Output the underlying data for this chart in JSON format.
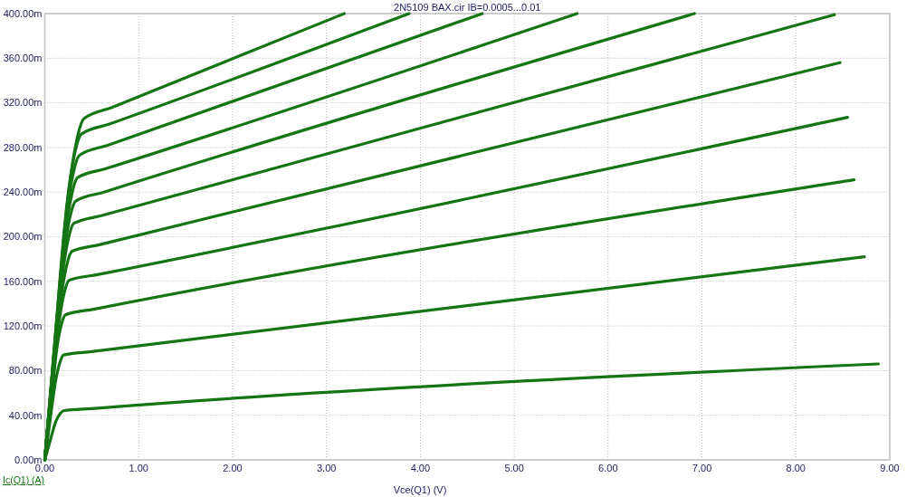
{
  "chart_data": {
    "type": "line",
    "title": "2N5109 BAX.cir IB=0.0005...0.01",
    "xlabel": "Vce(Q1) (V)",
    "ylabel": "Ic(Q1) (A)",
    "xlim": [
      0,
      9
    ],
    "ylim": [
      0,
      400
    ],
    "xticks": [
      {
        "value": 0,
        "label": "0.00"
      },
      {
        "value": 1,
        "label": "1.00"
      },
      {
        "value": 2,
        "label": "2.00"
      },
      {
        "value": 3,
        "label": "3.00"
      },
      {
        "value": 4,
        "label": "4.00"
      },
      {
        "value": 5,
        "label": "5.00"
      },
      {
        "value": 6,
        "label": "6.00"
      },
      {
        "value": 7,
        "label": "7.00"
      },
      {
        "value": 8,
        "label": "8.00"
      },
      {
        "value": 9,
        "label": "9.00"
      }
    ],
    "yticks": [
      {
        "value": 0,
        "label": "0.00m"
      },
      {
        "value": 40,
        "label": "40.00m"
      },
      {
        "value": 80,
        "label": "80.00m"
      },
      {
        "value": 120,
        "label": "120.00m"
      },
      {
        "value": 160,
        "label": "160.00m"
      },
      {
        "value": 200,
        "label": "200.00m"
      },
      {
        "value": 240,
        "label": "240.00m"
      },
      {
        "value": 280,
        "label": "280.00m"
      },
      {
        "value": 320,
        "label": "320.00m"
      },
      {
        "value": 360,
        "label": "360.00m"
      },
      {
        "value": 400,
        "label": "400.00m"
      }
    ],
    "grid": true,
    "series": [
      {
        "color": "#157515",
        "x": [
          0,
          0.06,
          0.12,
          0.16,
          0.2,
          0.5,
          8.88
        ],
        "values": [
          0,
          18,
          35,
          41,
          44,
          46,
          86
        ]
      },
      {
        "color": "#157515",
        "x": [
          0,
          0.06,
          0.12,
          0.16,
          0.2,
          0.5,
          8.73
        ],
        "values": [
          0,
          38,
          73,
          87,
          94,
          97,
          182
        ]
      },
      {
        "color": "#157515",
        "x": [
          0,
          0.066,
          0.132,
          0.176,
          0.22,
          0.52,
          8.62
        ],
        "values": [
          0,
          52,
          102,
          121,
          130,
          135,
          251
        ]
      },
      {
        "color": "#157515",
        "x": [
          0,
          0.078,
          0.156,
          0.208,
          0.26,
          0.56,
          8.55
        ],
        "values": [
          0,
          64,
          126,
          150,
          161,
          166,
          307
        ]
      },
      {
        "color": "#157515",
        "x": [
          0,
          0.087,
          0.174,
          0.232,
          0.29,
          0.59,
          8.47
        ],
        "values": [
          0,
          75,
          146,
          174,
          187,
          193,
          356
        ]
      },
      {
        "color": "#157515",
        "x": [
          0,
          0.093,
          0.186,
          0.248,
          0.31,
          0.61,
          8.41
        ],
        "values": [
          0,
          85,
          165,
          197,
          212,
          219,
          399
        ]
      },
      {
        "color": "#157515",
        "x": [
          0,
          0.099,
          0.198,
          0.264,
          0.33,
          0.63,
          6.92
        ],
        "values": [
          0,
          93,
          181,
          216,
          232,
          240,
          400
        ]
      },
      {
        "color": "#157515",
        "x": [
          0,
          0.105,
          0.21,
          0.28,
          0.35,
          0.65,
          5.67
        ],
        "values": [
          0,
          101,
          197,
          235,
          253,
          261,
          400
        ]
      },
      {
        "color": "#157515",
        "x": [
          0,
          0.111,
          0.222,
          0.296,
          0.37,
          0.67,
          4.66
        ],
        "values": [
          0,
          109,
          213,
          254,
          273,
          282,
          400
        ]
      },
      {
        "color": "#157515",
        "x": [
          0,
          0.117,
          0.234,
          0.312,
          0.39,
          0.69,
          3.88
        ],
        "values": [
          0,
          117,
          228,
          272,
          292,
          301,
          400
        ]
      },
      {
        "color": "#157515",
        "x": [
          0,
          0.126,
          0.252,
          0.336,
          0.42,
          0.72,
          3.19
        ],
        "values": [
          0,
          122,
          239,
          285,
          306,
          316,
          400
        ]
      }
    ]
  }
}
